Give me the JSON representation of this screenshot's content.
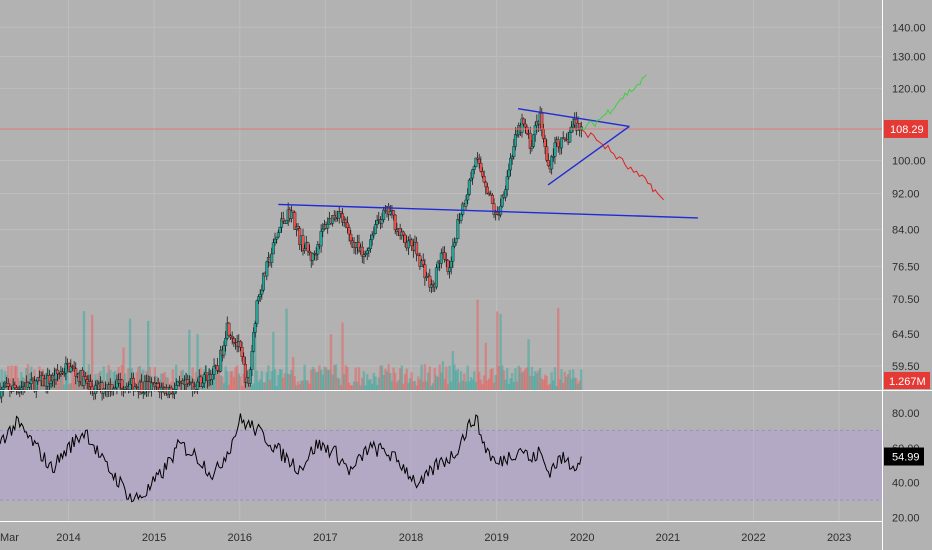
{
  "colors": {
    "background": "#b2b2b2",
    "grid": "#bdbdbd",
    "candle_up": "#26a69a",
    "candle_down": "#ef5350",
    "trendline": "#1f2bd6",
    "projection_up": "#3fcf3f",
    "projection_down": "#e02020",
    "rsi_band": "#b39ddb",
    "rsi_line": "#000000",
    "price_line": "#e57373"
  },
  "chart_data": [
    {
      "type": "candlestick",
      "name": "price",
      "scale": "log",
      "y_ticks": [
        "140.00",
        "130.00",
        "120.00",
        "108.29",
        "100.00",
        "92.00",
        "84.00",
        "76.50",
        "70.50",
        "64.50",
        "59.50"
      ],
      "y_tick_values": [
        140,
        130,
        120,
        100,
        92,
        84,
        76.5,
        70.5,
        64.5,
        59.5
      ],
      "x_tick_labels": [
        "Mar",
        "2014",
        "2015",
        "2016",
        "2017",
        "2018",
        "2019",
        "2020",
        "2021",
        "2022",
        "2023"
      ],
      "x_tick_values": [
        2013.17,
        2014,
        2015,
        2016,
        2017,
        2018,
        2019,
        2020,
        2021,
        2022,
        2023
      ],
      "xlim": [
        2013.2,
        2023.5
      ],
      "ylim": [
        56,
        150
      ],
      "last_price": "108.29",
      "last_price_value": 108.29,
      "volume_label": "1.267M",
      "price_anchors": [
        [
          2013.2,
          56
        ],
        [
          2013.5,
          56.5
        ],
        [
          2013.8,
          57.5
        ],
        [
          2014.0,
          59.5
        ],
        [
          2014.3,
          56
        ],
        [
          2014.6,
          57
        ],
        [
          2014.9,
          56.5
        ],
        [
          2015.2,
          56
        ],
        [
          2015.5,
          57
        ],
        [
          2015.75,
          59
        ],
        [
          2015.85,
          66
        ],
        [
          2016.0,
          62
        ],
        [
          2016.1,
          56
        ],
        [
          2016.2,
          70
        ],
        [
          2016.35,
          78
        ],
        [
          2016.5,
          86
        ],
        [
          2016.6,
          88
        ],
        [
          2016.7,
          82
        ],
        [
          2016.85,
          78
        ],
        [
          2017.0,
          85
        ],
        [
          2017.15,
          88
        ],
        [
          2017.3,
          82
        ],
        [
          2017.45,
          78
        ],
        [
          2017.6,
          86
        ],
        [
          2017.75,
          88
        ],
        [
          2017.9,
          82
        ],
        [
          2018.05,
          80
        ],
        [
          2018.15,
          76
        ],
        [
          2018.25,
          72
        ],
        [
          2018.35,
          79
        ],
        [
          2018.45,
          75
        ],
        [
          2018.55,
          86
        ],
        [
          2018.65,
          92
        ],
        [
          2018.75,
          100
        ],
        [
          2018.85,
          96
        ],
        [
          2019.0,
          86
        ],
        [
          2019.1,
          94
        ],
        [
          2019.2,
          104
        ],
        [
          2019.3,
          110
        ],
        [
          2019.4,
          104
        ],
        [
          2019.5,
          112
        ],
        [
          2019.6,
          98
        ],
        [
          2019.7,
          105
        ],
        [
          2019.8,
          104
        ],
        [
          2019.9,
          110
        ],
        [
          2020.0,
          108.29
        ]
      ],
      "trendlines": [
        {
          "x1": 2016.45,
          "y1": 89.5,
          "x2": 2021.35,
          "y2": 86.5
        },
        {
          "x1": 2019.25,
          "y1": 114,
          "x2": 2020.55,
          "y2": 109
        },
        {
          "x1": 2019.6,
          "y1": 94,
          "x2": 2020.55,
          "y2": 109
        }
      ],
      "projection_up": [
        [
          2020.0,
          108.5
        ],
        [
          2020.15,
          110
        ],
        [
          2020.3,
          113
        ],
        [
          2020.45,
          117
        ],
        [
          2020.6,
          120
        ],
        [
          2020.75,
          123.5
        ]
      ],
      "projection_down": [
        [
          2020.0,
          108
        ],
        [
          2020.2,
          105
        ],
        [
          2020.4,
          101
        ],
        [
          2020.6,
          97
        ],
        [
          2020.8,
          94
        ],
        [
          2020.95,
          90
        ]
      ]
    },
    {
      "type": "line",
      "name": "rsi",
      "y_ticks": [
        "80.00",
        "60.00",
        "40.00",
        "20.00"
      ],
      "y_tick_values": [
        80,
        60,
        40,
        20
      ],
      "ylim": [
        18,
        92
      ],
      "band": [
        30,
        70
      ],
      "last_value": "54.99",
      "last_value_num": 54.99,
      "rsi_anchors": [
        [
          2013.2,
          64
        ],
        [
          2013.4,
          74
        ],
        [
          2013.6,
          62
        ],
        [
          2013.8,
          48
        ],
        [
          2014.0,
          60
        ],
        [
          2014.2,
          70
        ],
        [
          2014.4,
          52
        ],
        [
          2014.6,
          40
        ],
        [
          2014.75,
          30
        ],
        [
          2014.9,
          34
        ],
        [
          2015.1,
          46
        ],
        [
          2015.3,
          62
        ],
        [
          2015.5,
          55
        ],
        [
          2015.7,
          44
        ],
        [
          2015.9,
          62
        ],
        [
          2016.0,
          76
        ],
        [
          2016.15,
          72
        ],
        [
          2016.3,
          66
        ],
        [
          2016.5,
          56
        ],
        [
          2016.7,
          48
        ],
        [
          2016.9,
          62
        ],
        [
          2017.1,
          58
        ],
        [
          2017.3,
          46
        ],
        [
          2017.5,
          60
        ],
        [
          2017.7,
          58
        ],
        [
          2017.9,
          50
        ],
        [
          2018.0,
          44
        ],
        [
          2018.1,
          38
        ],
        [
          2018.3,
          50
        ],
        [
          2018.5,
          56
        ],
        [
          2018.65,
          70
        ],
        [
          2018.75,
          78
        ],
        [
          2018.85,
          62
        ],
        [
          2019.0,
          50
        ],
        [
          2019.1,
          54
        ],
        [
          2019.3,
          60
        ],
        [
          2019.4,
          52
        ],
        [
          2019.5,
          58
        ],
        [
          2019.6,
          46
        ],
        [
          2019.75,
          54
        ],
        [
          2019.9,
          50
        ],
        [
          2020.0,
          54.99
        ]
      ]
    }
  ]
}
